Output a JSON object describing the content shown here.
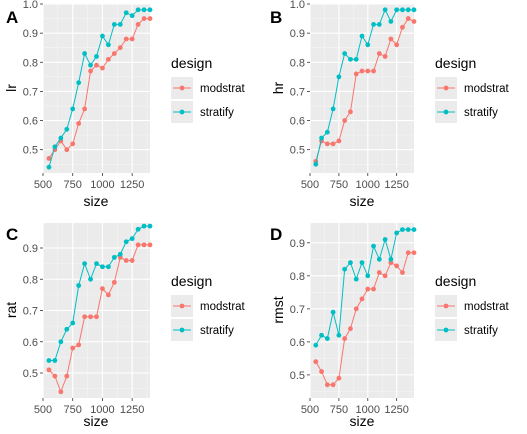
{
  "chart_data": [
    {
      "type": "line",
      "panel": "A",
      "xlabel": "size",
      "ylabel": "lr",
      "xlim": [
        500,
        1400
      ],
      "ylim": [
        0.42,
        1.0
      ],
      "xticks": [
        500,
        750,
        1000,
        1250
      ],
      "xtick_labels": [
        "500",
        "750",
        "1000",
        "1250"
      ],
      "yticks": [
        0.5,
        0.6,
        0.7,
        0.8,
        0.9,
        1.0
      ],
      "ytick_labels": [
        "0.5",
        "0.6",
        "0.7",
        "0.8",
        "0.9",
        "1.0"
      ],
      "grid": true,
      "legend": {
        "title": "design",
        "position": "right"
      },
      "x": [
        550,
        600,
        650,
        700,
        750,
        800,
        850,
        900,
        950,
        1000,
        1050,
        1100,
        1150,
        1200,
        1250,
        1300,
        1350,
        1400
      ],
      "series": [
        {
          "name": "modstrat",
          "color": "#F8766D",
          "values": [
            0.47,
            0.5,
            0.53,
            0.5,
            0.52,
            0.59,
            0.64,
            0.77,
            0.79,
            0.78,
            0.81,
            0.83,
            0.85,
            0.88,
            0.88,
            0.93,
            0.95,
            0.95
          ]
        },
        {
          "name": "stratify",
          "color": "#00BFC4",
          "values": [
            0.44,
            0.51,
            0.54,
            0.57,
            0.64,
            0.73,
            0.83,
            0.79,
            0.82,
            0.89,
            0.86,
            0.93,
            0.93,
            0.97,
            0.96,
            0.98,
            0.98,
            0.98
          ]
        }
      ]
    },
    {
      "type": "line",
      "panel": "B",
      "xlabel": "size",
      "ylabel": "hr",
      "xlim": [
        500,
        1400
      ],
      "ylim": [
        0.42,
        1.0
      ],
      "xticks": [
        500,
        750,
        1000,
        1250
      ],
      "xtick_labels": [
        "500",
        "750",
        "1000",
        "1250"
      ],
      "yticks": [
        0.5,
        0.6,
        0.7,
        0.8,
        0.9,
        1.0
      ],
      "ytick_labels": [
        "0.5",
        "0.6",
        "0.7",
        "0.8",
        "0.9",
        "1.0"
      ],
      "grid": true,
      "legend": {
        "title": "design",
        "position": "right"
      },
      "x": [
        550,
        600,
        650,
        700,
        750,
        800,
        850,
        900,
        950,
        1000,
        1050,
        1100,
        1150,
        1200,
        1250,
        1300,
        1350,
        1400
      ],
      "series": [
        {
          "name": "modstrat",
          "color": "#F8766D",
          "values": [
            0.46,
            0.53,
            0.52,
            0.52,
            0.53,
            0.6,
            0.63,
            0.76,
            0.77,
            0.77,
            0.77,
            0.83,
            0.82,
            0.88,
            0.86,
            0.92,
            0.95,
            0.94
          ]
        },
        {
          "name": "stratify",
          "color": "#00BFC4",
          "values": [
            0.45,
            0.54,
            0.56,
            0.64,
            0.75,
            0.83,
            0.81,
            0.81,
            0.89,
            0.86,
            0.93,
            0.93,
            0.98,
            0.94,
            0.98,
            0.98,
            0.98,
            0.98
          ]
        }
      ]
    },
    {
      "type": "line",
      "panel": "C",
      "xlabel": "size",
      "ylabel": "rat",
      "xlim": [
        500,
        1400
      ],
      "ylim": [
        0.42,
        0.98
      ],
      "xticks": [
        500,
        750,
        1000,
        1250
      ],
      "xtick_labels": [
        "500",
        "750",
        "1000",
        "1250"
      ],
      "yticks": [
        0.5,
        0.6,
        0.7,
        0.8,
        0.9
      ],
      "ytick_labels": [
        "0.5",
        "0.6",
        "0.7",
        "0.8",
        "0.9"
      ],
      "grid": true,
      "legend": {
        "title": "design",
        "position": "right"
      },
      "x": [
        550,
        600,
        650,
        700,
        750,
        800,
        850,
        900,
        950,
        1000,
        1050,
        1100,
        1150,
        1200,
        1250,
        1300,
        1350,
        1400
      ],
      "series": [
        {
          "name": "modstrat",
          "color": "#F8766D",
          "values": [
            0.51,
            0.49,
            0.44,
            0.49,
            0.58,
            0.59,
            0.68,
            0.68,
            0.68,
            0.77,
            0.75,
            0.79,
            0.87,
            0.86,
            0.86,
            0.91,
            0.91,
            0.91
          ]
        },
        {
          "name": "stratify",
          "color": "#00BFC4",
          "values": [
            0.54,
            0.54,
            0.6,
            0.64,
            0.66,
            0.78,
            0.85,
            0.8,
            0.85,
            0.84,
            0.84,
            0.87,
            0.88,
            0.92,
            0.93,
            0.96,
            0.97,
            0.97
          ]
        }
      ]
    },
    {
      "type": "line",
      "panel": "D",
      "xlabel": "size",
      "ylabel": "rmst",
      "xlim": [
        500,
        1400
      ],
      "ylim": [
        0.43,
        0.96
      ],
      "xticks": [
        500,
        750,
        1000,
        1250
      ],
      "xtick_labels": [
        "500",
        "750",
        "1000",
        "1250"
      ],
      "yticks": [
        0.5,
        0.6,
        0.7,
        0.8,
        0.9
      ],
      "ytick_labels": [
        "0.5",
        "0.6",
        "0.7",
        "0.8",
        "0.9"
      ],
      "grid": true,
      "legend": {
        "title": "design",
        "position": "right"
      },
      "x": [
        550,
        600,
        650,
        700,
        750,
        800,
        850,
        900,
        950,
        1000,
        1050,
        1100,
        1150,
        1200,
        1250,
        1300,
        1350,
        1400
      ],
      "series": [
        {
          "name": "modstrat",
          "color": "#F8766D",
          "values": [
            0.54,
            0.51,
            0.47,
            0.47,
            0.49,
            0.61,
            0.64,
            0.7,
            0.73,
            0.76,
            0.76,
            0.81,
            0.8,
            0.84,
            0.83,
            0.81,
            0.87,
            0.87
          ]
        },
        {
          "name": "stratify",
          "color": "#00BFC4",
          "values": [
            0.59,
            0.62,
            0.61,
            0.69,
            0.62,
            0.82,
            0.84,
            0.79,
            0.84,
            0.8,
            0.89,
            0.85,
            0.91,
            0.85,
            0.93,
            0.94,
            0.94,
            0.94
          ]
        }
      ]
    }
  ]
}
